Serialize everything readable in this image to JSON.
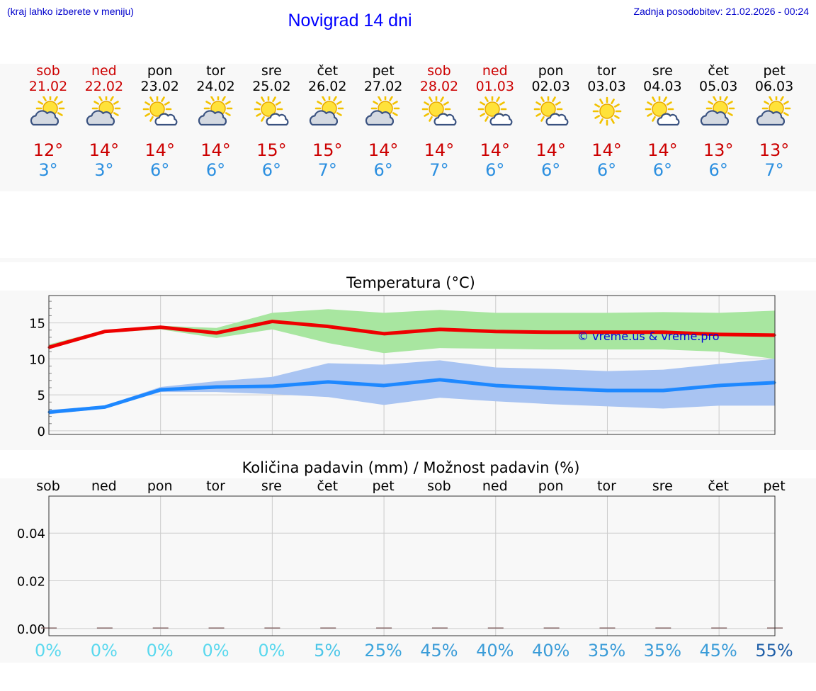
{
  "header": {
    "hint": "(kraj lahko izberete v meniju)",
    "title": "Novigrad 14 dni",
    "updated": "Zadnja posodobitev: 21.02.2026 - 00:24"
  },
  "days": [
    {
      "name": "sob",
      "date": "21.02",
      "weekend": true,
      "icon": "partly-cloudy-sun-icon",
      "max": "12°",
      "min": "3°"
    },
    {
      "name": "ned",
      "date": "22.02",
      "weekend": true,
      "icon": "partly-cloudy-sun-icon",
      "max": "14°",
      "min": "3°"
    },
    {
      "name": "pon",
      "date": "23.02",
      "weekend": false,
      "icon": "sun-cloud-icon",
      "max": "14°",
      "min": "6°"
    },
    {
      "name": "tor",
      "date": "24.02",
      "weekend": false,
      "icon": "partly-cloudy-sun-icon",
      "max": "14°",
      "min": "6°"
    },
    {
      "name": "sre",
      "date": "25.02",
      "weekend": false,
      "icon": "sun-cloud-icon",
      "max": "15°",
      "min": "6°"
    },
    {
      "name": "čet",
      "date": "26.02",
      "weekend": false,
      "icon": "partly-cloudy-sun-icon",
      "max": "15°",
      "min": "7°"
    },
    {
      "name": "pet",
      "date": "27.02",
      "weekend": false,
      "icon": "partly-cloudy-sun-icon",
      "max": "14°",
      "min": "6°"
    },
    {
      "name": "sob",
      "date": "28.02",
      "weekend": true,
      "icon": "sun-cloud-icon",
      "max": "14°",
      "min": "7°"
    },
    {
      "name": "ned",
      "date": "01.03",
      "weekend": true,
      "icon": "sun-cloud-icon",
      "max": "14°",
      "min": "6°"
    },
    {
      "name": "pon",
      "date": "02.03",
      "weekend": false,
      "icon": "sun-cloud-icon",
      "max": "14°",
      "min": "6°"
    },
    {
      "name": "tor",
      "date": "03.03",
      "weekend": false,
      "icon": "sun-icon",
      "max": "14°",
      "min": "6°"
    },
    {
      "name": "sre",
      "date": "04.03",
      "weekend": false,
      "icon": "sun-cloud-icon",
      "max": "14°",
      "min": "6°"
    },
    {
      "name": "čet",
      "date": "05.03",
      "weekend": false,
      "icon": "partly-cloudy-sun-icon",
      "max": "13°",
      "min": "6°"
    },
    {
      "name": "pet",
      "date": "06.03",
      "weekend": false,
      "icon": "partly-cloudy-sun-icon",
      "max": "13°",
      "min": "7°"
    }
  ],
  "colors": {
    "weekday": "#000000",
    "weekend": "#cc0000",
    "max_line": "#ee0000",
    "min_line": "#1e88ff",
    "max_band": "#a8e6a0",
    "min_band": "#a9c4f2"
  },
  "chart_data": [
    {
      "type": "line",
      "title": "Temperatura (°C)",
      "watermark": "© vreme.us & vreme.pro",
      "x": [
        0,
        1,
        2,
        3,
        4,
        5,
        6,
        7,
        8,
        9,
        10,
        11,
        12,
        13
      ],
      "ylim": [
        -0.5,
        18.8
      ],
      "yticks": [
        0,
        5,
        10,
        15
      ],
      "grid": true,
      "series": [
        {
          "name": "max",
          "values": [
            11.6,
            13.8,
            14.4,
            13.6,
            15.2,
            14.5,
            13.5,
            14.1,
            13.8,
            13.7,
            13.7,
            13.7,
            13.4,
            13.3
          ]
        },
        {
          "name": "min",
          "values": [
            2.6,
            3.3,
            5.7,
            6.1,
            6.2,
            6.8,
            6.3,
            7.1,
            6.3,
            5.9,
            5.6,
            5.6,
            6.3,
            6.7
          ]
        }
      ],
      "bands": [
        {
          "name": "max-range",
          "upper": [
            12.0,
            14.0,
            14.6,
            14.3,
            16.4,
            16.9,
            16.4,
            16.8,
            16.4,
            16.4,
            16.4,
            16.5,
            16.4,
            16.7
          ],
          "lower": [
            11.4,
            13.6,
            14.1,
            12.9,
            14.1,
            12.2,
            10.8,
            11.5,
            11.4,
            11.3,
            11.3,
            11.3,
            11.0,
            10.0
          ]
        },
        {
          "name": "min-range",
          "upper": [
            2.9,
            3.5,
            6.1,
            6.9,
            7.5,
            9.4,
            9.2,
            9.8,
            8.8,
            8.6,
            8.3,
            8.5,
            9.3,
            10.0
          ],
          "lower": [
            2.3,
            3.1,
            5.4,
            5.4,
            5.1,
            4.7,
            3.6,
            4.6,
            4.1,
            3.7,
            3.4,
            3.1,
            3.5,
            3.5
          ]
        }
      ]
    },
    {
      "type": "bar",
      "title": "Količina padavin (mm) / Možnost padavin (%)",
      "categories": [
        "sob",
        "ned",
        "pon",
        "tor",
        "sre",
        "čet",
        "pet",
        "sob",
        "ned",
        "pon",
        "tor",
        "sre",
        "čet",
        "pet"
      ],
      "values": [
        0,
        0,
        0,
        0,
        0,
        0,
        0,
        0,
        0,
        0,
        0,
        0,
        0,
        0
      ],
      "probability": [
        "0%",
        "0%",
        "0%",
        "0%",
        "0%",
        "5%",
        "25%",
        "45%",
        "40%",
        "40%",
        "35%",
        "35%",
        "45%",
        "55%"
      ],
      "probability_colors": [
        "#5ad8ee",
        "#5ad8ee",
        "#5ad8ee",
        "#5ad8ee",
        "#5ad8ee",
        "#4cc6e8",
        "#3aa4dc",
        "#3a9cd8",
        "#3a9cd8",
        "#3a9cd8",
        "#3a9cd8",
        "#3a9cd8",
        "#3a9cd8",
        "#1f5fa8"
      ],
      "ylim": [
        -0.003,
        0.0555
      ],
      "yticks": [
        "0.00",
        "0.02",
        "0.04"
      ],
      "ytick_values": [
        0,
        0.02,
        0.04
      ],
      "grid": true
    }
  ]
}
